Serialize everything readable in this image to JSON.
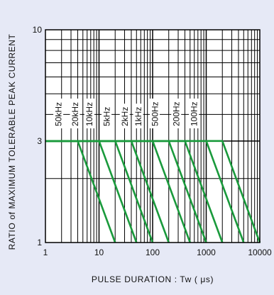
{
  "chart_data": {
    "type": "line",
    "title": "",
    "xlabel": "PULSE  DURATION : Tw  ( μs)",
    "ylabel": "RATIO  of  MAXIMUM  TOLERABLE  PEAK  CURRENT",
    "x_scale": "log",
    "y_scale": "log",
    "xlim": [
      1,
      10000
    ],
    "ylim": [
      1,
      10
    ],
    "x_ticks": [
      "1",
      "10",
      "100",
      "1000",
      "10000"
    ],
    "y_ticks": [
      "10",
      "3",
      "1"
    ],
    "grid": true,
    "line_color": "#1a9a3c",
    "plateau_ratio": 3,
    "series": [
      {
        "name": "50kHz",
        "points": [
          [
            1,
            3
          ],
          [
            4,
            3
          ],
          [
            20,
            1
          ]
        ]
      },
      {
        "name": "20kHz",
        "points": [
          [
            1,
            3
          ],
          [
            10,
            3
          ],
          [
            50,
            1
          ]
        ]
      },
      {
        "name": "10kHz",
        "points": [
          [
            1,
            3
          ],
          [
            20,
            3
          ],
          [
            100,
            1
          ]
        ]
      },
      {
        "name": "5kHz",
        "points": [
          [
            1,
            3
          ],
          [
            40,
            3
          ],
          [
            200,
            1
          ]
        ]
      },
      {
        "name": "2kHz",
        "points": [
          [
            1,
            3
          ],
          [
            100,
            3
          ],
          [
            500,
            1
          ]
        ]
      },
      {
        "name": "1kHz",
        "points": [
          [
            1,
            3
          ],
          [
            200,
            3
          ],
          [
            1000,
            1
          ]
        ]
      },
      {
        "name": "500Hz",
        "points": [
          [
            1,
            3
          ],
          [
            400,
            3
          ],
          [
            2000,
            1
          ]
        ]
      },
      {
        "name": "200Hz",
        "points": [
          [
            1,
            3
          ],
          [
            1000,
            3
          ],
          [
            5000,
            1
          ]
        ]
      },
      {
        "name": "100Hz",
        "points": [
          [
            1,
            3
          ],
          [
            2000,
            3
          ],
          [
            10000,
            1
          ]
        ]
      }
    ]
  }
}
